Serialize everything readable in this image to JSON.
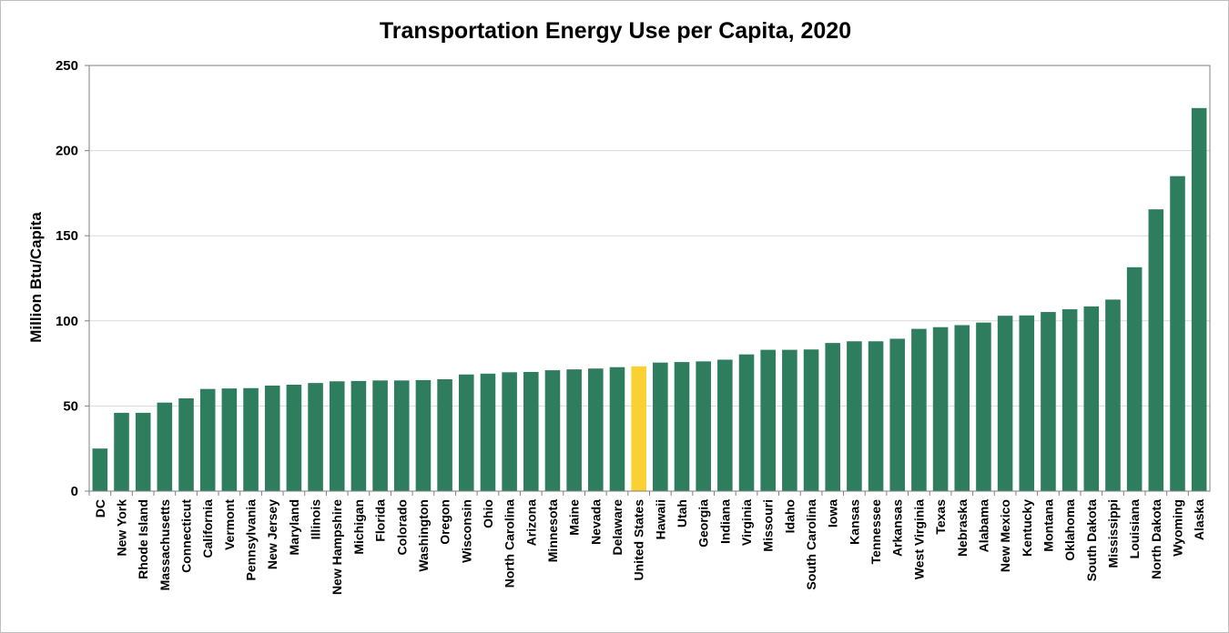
{
  "chart_data": {
    "type": "bar",
    "title": "Transportation Energy Use per Capita, 2020",
    "xlabel": "",
    "ylabel": "Million Btu/Capita",
    "ylim": [
      0,
      250
    ],
    "yticks": [
      0,
      50,
      100,
      150,
      200,
      250
    ],
    "grid": true,
    "colors": {
      "bar": "#2e7d5e",
      "highlight": "#f9d132",
      "grid": "#d9d9d9",
      "axis": "#808080"
    },
    "highlight_category": "United States",
    "categories": [
      "DC",
      "New York",
      "Rhode Island",
      "Massachusetts",
      "Connecticut",
      "California",
      "Vermont",
      "Pennsylvania",
      "New Jersey",
      "Maryland",
      "Illinois",
      "New Hampshire",
      "Michigan",
      "Florida",
      "Colorado",
      "Washington",
      "Oregon",
      "Wisconsin",
      "Ohio",
      "North Carolina",
      "Arizona",
      "Minnesota",
      "Maine",
      "Nevada",
      "Delaware",
      "United States",
      "Hawaii",
      "Utah",
      "Georgia",
      "Indiana",
      "Virginia",
      "Missouri",
      "Idaho",
      "South Carolina",
      "Iowa",
      "Kansas",
      "Tennessee",
      "Arkansas",
      "West Virginia",
      "Texas",
      "Nebraska",
      "Alabama",
      "New Mexico",
      "Kentucky",
      "Montana",
      "Oklahoma",
      "South Dakota",
      "Mississippi",
      "Louisiana",
      "North Dakota",
      "Wyoming",
      "Alaska"
    ],
    "values": [
      25,
      46,
      46,
      52,
      54.5,
      60,
      60.3,
      60.5,
      62,
      62.5,
      63.5,
      64.5,
      64.7,
      65,
      65,
      65.2,
      65.7,
      68.5,
      69,
      69.8,
      70,
      71,
      71.5,
      72,
      72.8,
      73.3,
      75.5,
      75.8,
      76.2,
      77.2,
      80.3,
      83,
      83,
      83.2,
      87,
      88,
      88,
      89.5,
      95.3,
      96.3,
      97.5,
      99,
      103,
      103.2,
      105.2,
      106.8,
      108.5,
      112.5,
      131.5,
      165.5,
      185,
      225
    ]
  }
}
